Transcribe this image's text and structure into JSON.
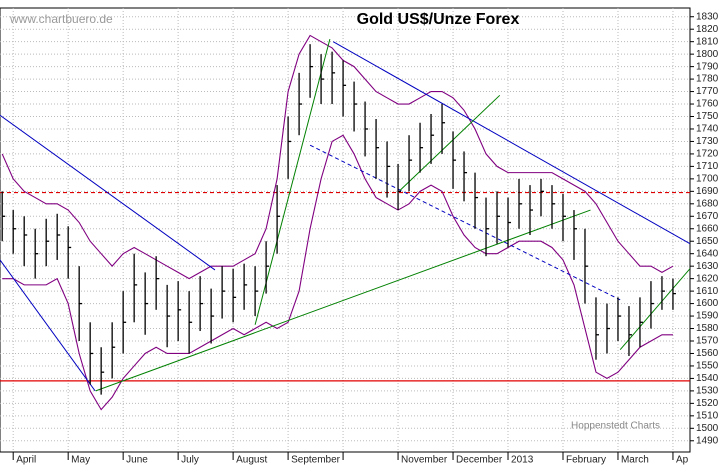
{
  "chart_data": {
    "type": "ohlc",
    "title": "Gold US$/Unze Forex",
    "watermark": "www.chartbuero.de",
    "source": "Hoppenstedt Charts",
    "xlim": [
      -0.24,
      12.31
    ],
    "xticks": [
      {
        "value": 0,
        "label": "April"
      },
      {
        "value": 1,
        "label": "May"
      },
      {
        "value": 2,
        "label": "June"
      },
      {
        "value": 3,
        "label": "July"
      },
      {
        "value": 4,
        "label": "August"
      },
      {
        "value": 5,
        "label": "September"
      },
      {
        "value": 6,
        "label": null
      },
      {
        "value": 7,
        "label": "November"
      },
      {
        "value": 8,
        "label": "December"
      },
      {
        "value": 9,
        "label": "2013"
      },
      {
        "value": 10,
        "label": "February"
      },
      {
        "value": 11,
        "label": "March"
      },
      {
        "value": 12,
        "label": "Ap"
      }
    ],
    "ylim": [
      1481,
      1837
    ],
    "yticks": [
      1490,
      1500,
      1510,
      1520,
      1530,
      1540,
      1550,
      1560,
      1570,
      1580,
      1590,
      1600,
      1610,
      1620,
      1630,
      1640,
      1650,
      1660,
      1670,
      1680,
      1690,
      1700,
      1710,
      1720,
      1730,
      1740,
      1750,
      1760,
      1770,
      1780,
      1790,
      1800,
      1810,
      1820,
      1830
    ],
    "grid": true,
    "color": "#000000",
    "x": [
      -0.2,
      0,
      0.2,
      0.4,
      0.6,
      0.8,
      1.0,
      1.2,
      1.4,
      1.6,
      1.8,
      2.0,
      2.2,
      2.4,
      2.6,
      2.8,
      3.0,
      3.2,
      3.4,
      3.6,
      3.8,
      4.0,
      4.2,
      4.4,
      4.6,
      4.8,
      5.0,
      5.2,
      5.4,
      5.6,
      5.8,
      6.0,
      6.2,
      6.4,
      6.6,
      6.8,
      7.0,
      7.2,
      7.4,
      7.6,
      7.8,
      8.0,
      8.2,
      8.4,
      8.6,
      8.8,
      9.0,
      9.2,
      9.4,
      9.6,
      9.8,
      10.0,
      10.2,
      10.4,
      10.6,
      10.8,
      11.0,
      11.2,
      11.4,
      11.6,
      11.8,
      12.0
    ],
    "high": [
      1690,
      1675,
      1670,
      1660,
      1668,
      1672,
      1662,
      1630,
      1585,
      1565,
      1585,
      1610,
      1640,
      1625,
      1638,
      1615,
      1618,
      1610,
      1622,
      1612,
      1630,
      1628,
      1632,
      1630,
      1650,
      1695,
      1750,
      1785,
      1808,
      1800,
      1802,
      1795,
      1778,
      1762,
      1748,
      1730,
      1712,
      1735,
      1745,
      1752,
      1760,
      1738,
      1722,
      1705,
      1685,
      1690,
      1685,
      1700,
      1695,
      1700,
      1695,
      1688,
      1675,
      1660,
      1605,
      1600,
      1605,
      1598,
      1605,
      1618,
      1622,
      1620
    ],
    "low": [
      1650,
      1640,
      1630,
      1620,
      1630,
      1635,
      1620,
      1570,
      1535,
      1527,
      1540,
      1560,
      1585,
      1575,
      1595,
      1565,
      1570,
      1560,
      1578,
      1568,
      1588,
      1585,
      1595,
      1590,
      1608,
      1640,
      1700,
      1735,
      1765,
      1760,
      1760,
      1750,
      1738,
      1718,
      1700,
      1685,
      1675,
      1690,
      1705,
      1712,
      1720,
      1692,
      1682,
      1660,
      1638,
      1648,
      1645,
      1660,
      1655,
      1670,
      1660,
      1650,
      1635,
      1600,
      1555,
      1560,
      1570,
      1558,
      1565,
      1580,
      1595,
      1595
    ],
    "close": [
      1670,
      1660,
      1655,
      1640,
      1650,
      1655,
      1645,
      1600,
      1560,
      1545,
      1565,
      1585,
      1615,
      1600,
      1620,
      1590,
      1595,
      1585,
      1600,
      1590,
      1610,
      1605,
      1615,
      1610,
      1630,
      1670,
      1730,
      1760,
      1790,
      1780,
      1785,
      1775,
      1760,
      1740,
      1725,
      1710,
      1690,
      1715,
      1725,
      1735,
      1745,
      1715,
      1705,
      1685,
      1660,
      1670,
      1665,
      1680,
      1675,
      1690,
      1680,
      1670,
      1660,
      1630,
      1575,
      1580,
      1590,
      1575,
      1585,
      1600,
      1610,
      1608
    ],
    "bands": {
      "color": "#800080",
      "upper": [
        1720,
        1700,
        1690,
        1685,
        1680,
        1680,
        1675,
        1665,
        1650,
        1640,
        1630,
        1640,
        1645,
        1640,
        1635,
        1630,
        1625,
        1620,
        1625,
        1630,
        1630,
        1630,
        1635,
        1640,
        1660,
        1700,
        1770,
        1800,
        1815,
        1810,
        1805,
        1795,
        1790,
        1780,
        1770,
        1765,
        1760,
        1760,
        1765,
        1770,
        1770,
        1765,
        1755,
        1740,
        1720,
        1710,
        1705,
        1705,
        1705,
        1705,
        1705,
        1700,
        1695,
        1690,
        1680,
        1665,
        1650,
        1640,
        1630,
        1630,
        1625,
        1630
      ],
      "lower": [
        1620,
        1620,
        1615,
        1615,
        1615,
        1620,
        1600,
        1560,
        1530,
        1515,
        1525,
        1540,
        1550,
        1560,
        1565,
        1560,
        1560,
        1560,
        1565,
        1570,
        1575,
        1580,
        1575,
        1580,
        1585,
        1580,
        1585,
        1610,
        1660,
        1700,
        1730,
        1735,
        1720,
        1700,
        1685,
        1680,
        1675,
        1680,
        1690,
        1695,
        1690,
        1670,
        1655,
        1645,
        1640,
        1640,
        1645,
        1650,
        1650,
        1650,
        1645,
        1635,
        1615,
        1580,
        1545,
        1540,
        1545,
        1555,
        1565,
        1570,
        1575,
        1575
      ]
    },
    "hlines": [
      {
        "value": 1538,
        "color": "#e00000",
        "dash": false
      },
      {
        "value": 1689,
        "color": "#e00000",
        "dash": true
      }
    ],
    "trendlines": [
      {
        "color": "#008000",
        "dash": false,
        "points": [
          [
            1.5,
            1530
          ],
          [
            10.5,
            1675
          ]
        ]
      },
      {
        "color": "#0000c0",
        "dash": false,
        "points": [
          [
            5.82,
            1810
          ],
          [
            12.31,
            1648
          ]
        ]
      },
      {
        "color": "#0000c0",
        "dash": true,
        "points": [
          [
            5.4,
            1727
          ],
          [
            11.04,
            1603
          ]
        ]
      },
      {
        "color": "#0000c0",
        "dash": false,
        "points": [
          [
            -0.24,
            1751
          ],
          [
            3.67,
            1627
          ]
        ]
      },
      {
        "color": "#0000c0",
        "dash": false,
        "points": [
          [
            -0.24,
            1635
          ],
          [
            1.49,
            1530
          ]
        ]
      },
      {
        "color": "#008000",
        "dash": false,
        "points": [
          [
            4.4,
            1583
          ],
          [
            5.76,
            1812
          ]
        ]
      },
      {
        "color": "#008000",
        "dash": false,
        "points": [
          [
            11.04,
            1563
          ],
          [
            12.31,
            1628
          ]
        ]
      },
      {
        "color": "#008000",
        "dash": false,
        "points": [
          [
            7.04,
            1691
          ],
          [
            8.85,
            1767
          ]
        ]
      }
    ]
  }
}
